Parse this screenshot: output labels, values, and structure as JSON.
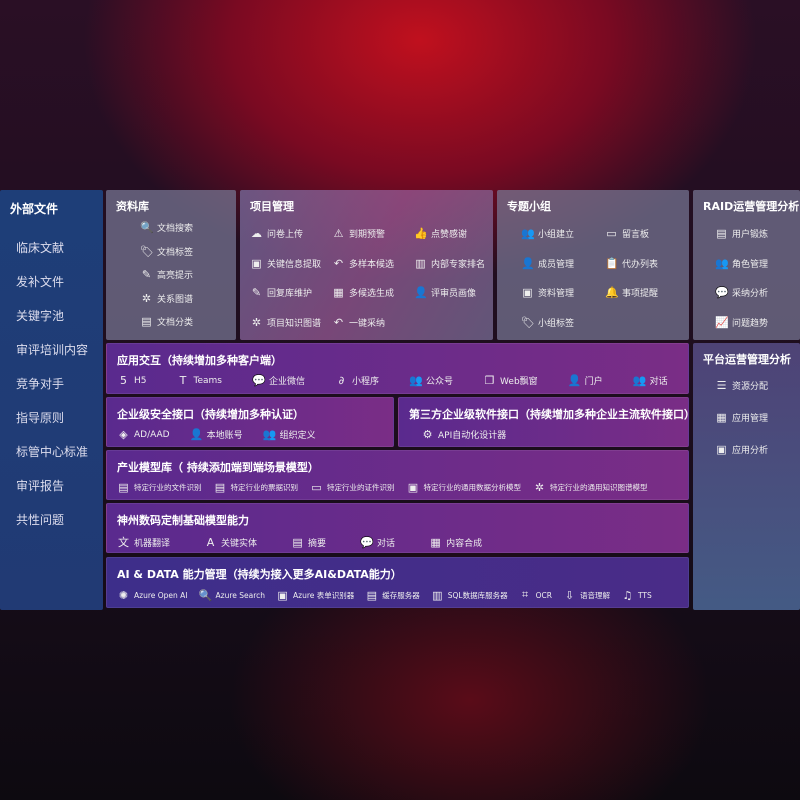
{
  "sidebar": {
    "title": "外部文件",
    "items": [
      "临床文献",
      "发补文件",
      "关键字池",
      "审评培训内容",
      "竞争对手",
      "指导原则",
      "标管中心标准",
      "审评报告",
      "共性问题"
    ]
  },
  "library": {
    "title": "资料库",
    "items": [
      {
        "icon": "doc-search-icon",
        "g": "🔍",
        "label": "文档搜索"
      },
      {
        "icon": "tag-icon",
        "g": "🏷",
        "label": "文档标签"
      },
      {
        "icon": "pen-icon",
        "g": "✎",
        "label": "高亮提示"
      },
      {
        "icon": "graph-icon",
        "g": "✲",
        "label": "关系图谱"
      },
      {
        "icon": "doc-category-icon",
        "g": "▤",
        "label": "文档分类"
      }
    ]
  },
  "project": {
    "title": "项目管理",
    "items": [
      {
        "icon": "cloud-upload-icon",
        "g": "☁",
        "label": "问卷上传"
      },
      {
        "icon": "alarm-icon",
        "g": "⚠",
        "label": "到期预警"
      },
      {
        "icon": "thumbs-up-icon",
        "g": "👍",
        "label": "点赞感谢"
      },
      {
        "icon": "info-extract-icon",
        "g": "▣",
        "label": "关键信息提取"
      },
      {
        "icon": "reply-icon",
        "g": "↶",
        "label": "多样本候选"
      },
      {
        "icon": "rank-icon",
        "g": "▥",
        "label": "内部专家排名"
      },
      {
        "icon": "edit-icon",
        "g": "✎",
        "label": "回复库维护"
      },
      {
        "icon": "puzzle-icon",
        "g": "▦",
        "label": "多候选生成"
      },
      {
        "icon": "user-icon",
        "g": "👤",
        "label": "评审员画像"
      },
      {
        "icon": "graph-icon",
        "g": "✲",
        "label": "项目知识图谱"
      },
      {
        "icon": "reply-icon",
        "g": "↶",
        "label": "一键采纳"
      }
    ]
  },
  "group": {
    "title": "专题小组",
    "items": [
      {
        "icon": "users-icon",
        "g": "👥",
        "label": "小组建立"
      },
      {
        "icon": "bbs-icon",
        "g": "▭",
        "label": "留言板"
      },
      {
        "icon": "member-icon",
        "g": "👤",
        "label": "成员管理"
      },
      {
        "icon": "clipboard-icon",
        "g": "📋",
        "label": "代办列表"
      },
      {
        "icon": "folder-icon",
        "g": "▣",
        "label": "资料管理"
      },
      {
        "icon": "bell-icon",
        "g": "🔔",
        "label": "事项提醒"
      },
      {
        "icon": "tag-icon",
        "g": "🏷",
        "label": "小组标签"
      }
    ]
  },
  "raid": {
    "title": "RAID运营管理分析",
    "items": [
      {
        "icon": "id-card-icon",
        "g": "▤",
        "label": "用户锻炼"
      },
      {
        "icon": "users-icon",
        "g": "👥",
        "label": "角色管理"
      },
      {
        "icon": "qa-icon",
        "g": "💬",
        "label": "采纳分析"
      },
      {
        "icon": "trend-icon",
        "g": "📈",
        "label": "问题趋势"
      }
    ]
  },
  "platform": {
    "title": "平台运营管理分析",
    "items": [
      {
        "icon": "list-icon",
        "g": "☰",
        "label": "资源分配"
      },
      {
        "icon": "apps-icon",
        "g": "▦",
        "label": "应用管理"
      },
      {
        "icon": "analysis-icon",
        "g": "▣",
        "label": "应用分析"
      }
    ]
  },
  "app": {
    "title": "应用交互（持续增加多种客户端）",
    "items": [
      {
        "icon": "html5-icon",
        "g": "5",
        "label": "H5"
      },
      {
        "icon": "teams-icon",
        "g": "T",
        "label": "Teams"
      },
      {
        "icon": "wechat-icon",
        "g": "💬",
        "label": "企业微信"
      },
      {
        "icon": "miniprogram-icon",
        "g": "∂",
        "label": "小程序"
      },
      {
        "icon": "users-icon",
        "g": "👥",
        "label": "公众号"
      },
      {
        "icon": "window-icon",
        "g": "❐",
        "label": "Web飘窗"
      },
      {
        "icon": "portal-icon",
        "g": "👤",
        "label": "门户"
      },
      {
        "icon": "chat-icon",
        "g": "👥",
        "label": "对话"
      }
    ]
  },
  "security": {
    "title": "企业级安全接口（持续增加多种认证）",
    "items": [
      {
        "icon": "ad-icon",
        "g": "◈",
        "label": "AD/AAD"
      },
      {
        "icon": "local-account-icon",
        "g": "👤",
        "label": "本地账号"
      },
      {
        "icon": "org-icon",
        "g": "👥",
        "label": "组织定义"
      }
    ]
  },
  "thirdparty": {
    "title": "第三方企业级软件接口（持续增加多种企业主流软件接口）",
    "items": [
      {
        "icon": "api-gear-icon",
        "g": "⚙",
        "label": "API自动化设计器"
      }
    ]
  },
  "industry": {
    "title": "产业模型库（ 持续添加端到端场景模型）",
    "items": [
      {
        "icon": "file-icon",
        "g": "▤",
        "label": "特定行业的文件识别"
      },
      {
        "icon": "receipt-icon",
        "g": "▤",
        "label": "特定行业的票据识别"
      },
      {
        "icon": "id-card-icon",
        "g": "▭",
        "label": "特定行业的证件识别"
      },
      {
        "icon": "chart-icon",
        "g": "▣",
        "label": "特定行业的通用数据分析模型"
      },
      {
        "icon": "graph-icon",
        "g": "✲",
        "label": "特定行业的通用知识图谱模型"
      }
    ]
  },
  "base": {
    "title": "神州数码定制基础模型能力",
    "items": [
      {
        "icon": "translate-icon",
        "g": "文",
        "label": "机器翻译"
      },
      {
        "icon": "entity-icon",
        "g": "A",
        "label": "关键实体"
      },
      {
        "icon": "summary-icon",
        "g": "▤",
        "label": "摘要"
      },
      {
        "icon": "chat-icon",
        "g": "💬",
        "label": "对话"
      },
      {
        "icon": "compose-icon",
        "g": "▦",
        "label": "内容合成"
      }
    ]
  },
  "ai": {
    "title": "AI & DATA 能力管理（持续为接入更多AI&DATA能力）",
    "items": [
      {
        "icon": "openai-icon",
        "g": "✺",
        "label": "Azure Open AI"
      },
      {
        "icon": "search-icon",
        "g": "🔍",
        "label": "Azure Search"
      },
      {
        "icon": "form-icon",
        "g": "▣",
        "label": "Azure 表单识别器"
      },
      {
        "icon": "cache-icon",
        "g": "▤",
        "label": "缓存服务器"
      },
      {
        "icon": "sql-icon",
        "g": "▥",
        "label": "SQL数据库服务器"
      },
      {
        "icon": "ocr-icon",
        "g": "⌗",
        "label": "OCR"
      },
      {
        "icon": "speech-icon",
        "g": "⇩",
        "label": "语音理解"
      },
      {
        "icon": "tts-icon",
        "g": "♫",
        "label": "TTS"
      }
    ]
  }
}
